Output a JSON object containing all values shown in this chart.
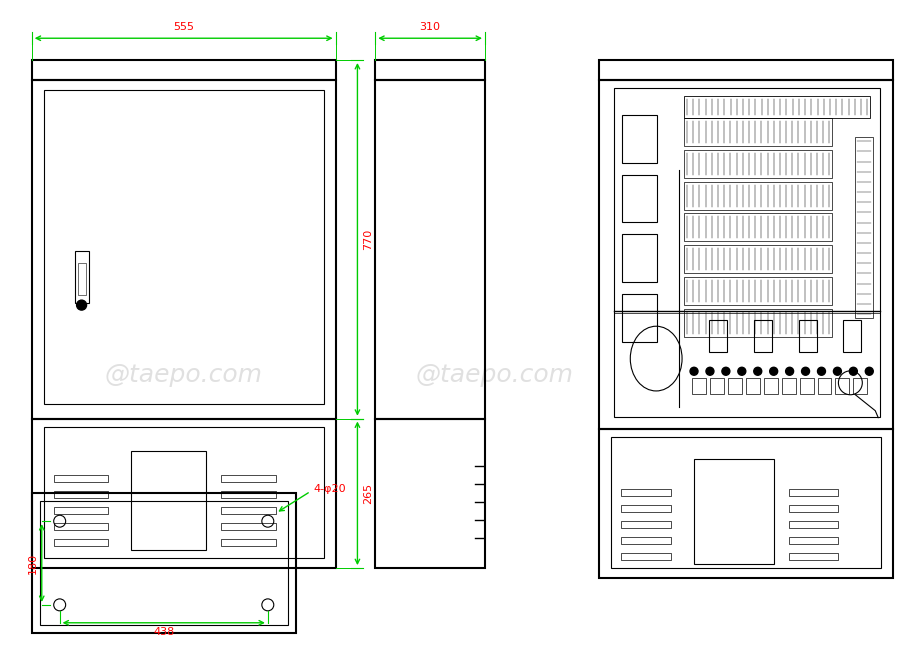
{
  "bg_color": "#ffffff",
  "line_color": "#000000",
  "dim_color": "#ff0000",
  "arrow_color": "#00cc00",
  "watermark": "@taepo.com",
  "watermark_color": "#cccccc",
  "fig_w": 9.21,
  "fig_h": 6.64,
  "dpi": 100
}
